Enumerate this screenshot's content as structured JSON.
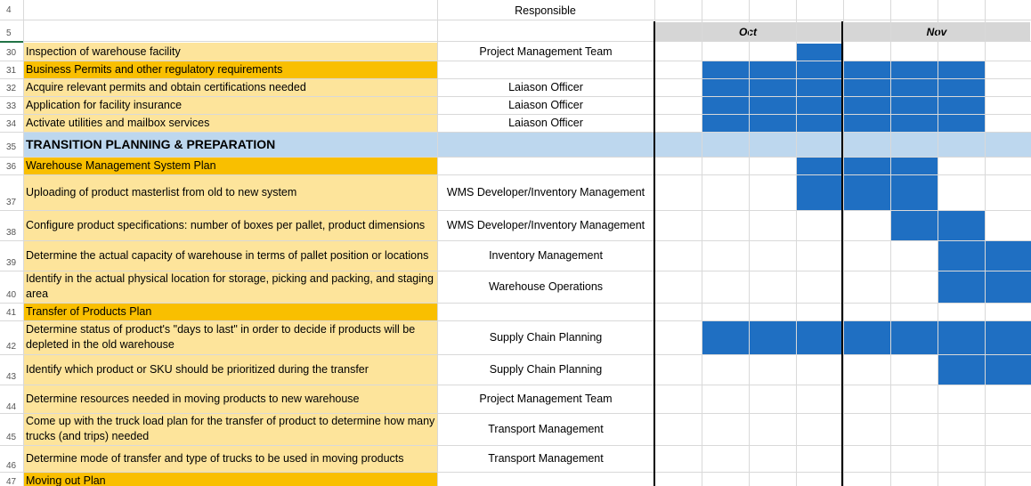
{
  "header": {
    "row4": "4",
    "row5": "5",
    "responsible_label": "Responsible",
    "months": [
      "Oct",
      "Nov"
    ]
  },
  "colors": {
    "task_fill": "#fde49b",
    "section_fill": "#f9bf00",
    "phase_fill": "#bdd7ee",
    "bar_fill": "#1f6fc2"
  },
  "rows": [
    {
      "num": "30",
      "task": "Inspection of warehouse facility",
      "responsible": "Project Management Team",
      "type": "task",
      "bars": [
        [
          3,
          4
        ]
      ]
    },
    {
      "num": "31",
      "task": "Business Permits and other regulatory requirements",
      "responsible": "",
      "type": "section",
      "bars": [
        [
          1,
          7
        ]
      ]
    },
    {
      "num": "32",
      "task": "Acquire relevant permits and obtain certifications needed",
      "responsible": "Laiason Officer",
      "type": "task",
      "bars": [
        [
          1,
          7
        ]
      ]
    },
    {
      "num": "33",
      "task": "Application for facility insurance",
      "responsible": "Laiason Officer",
      "type": "task",
      "bars": [
        [
          1,
          7
        ]
      ]
    },
    {
      "num": "34",
      "task": "Activate utilities and mailbox services",
      "responsible": "Laiason Officer",
      "type": "task",
      "bars": [
        [
          1,
          7
        ]
      ]
    },
    {
      "num": "35",
      "task": "TRANSITION PLANNING & PREPARATION",
      "responsible": "",
      "type": "phase",
      "bars": []
    },
    {
      "num": "36",
      "task": "Warehouse Management System Plan",
      "responsible": "",
      "type": "section",
      "bars": [
        [
          3,
          6
        ]
      ]
    },
    {
      "num": "37",
      "task": "Uploading of product masterlist from old to new system",
      "responsible": "WMS Developer/Inventory Management",
      "type": "task",
      "bars": [
        [
          3,
          6
        ]
      ]
    },
    {
      "num": "38",
      "task": "Configure product specifications: number of boxes per pallet, product dimensions",
      "responsible": "WMS Developer/Inventory Management",
      "type": "task",
      "bars": [
        [
          5,
          7
        ]
      ]
    },
    {
      "num": "39",
      "task": "Determine the actual capacity of warehouse in terms of pallet position or locations",
      "responsible": "Inventory Management",
      "type": "task",
      "bars": [
        [
          6,
          8
        ]
      ]
    },
    {
      "num": "40",
      "task": "Identify in the actual physical location for storage, picking and packing, and staging area",
      "responsible": "Warehouse Operations",
      "type": "task",
      "bars": [
        [
          6,
          8
        ]
      ]
    },
    {
      "num": "41",
      "task": "Transfer of Products Plan",
      "responsible": "",
      "type": "section",
      "bars": []
    },
    {
      "num": "42",
      "task": "Determine status of product's \"days to last\" in order to decide if products will be depleted in the old warehouse",
      "responsible": "Supply Chain Planning",
      "type": "task",
      "bars": [
        [
          1,
          8
        ]
      ]
    },
    {
      "num": "43",
      "task": "Identify which product or SKU should be prioritized during the transfer",
      "responsible": "Supply Chain Planning",
      "type": "task",
      "bars": [
        [
          6,
          8
        ]
      ]
    },
    {
      "num": "44",
      "task": "Determine resources needed in moving products to new warehouse",
      "responsible": "Project Management Team",
      "type": "task",
      "bars": []
    },
    {
      "num": "45",
      "task": "Come up with the truck load plan for the transfer of product to determine how many trucks (and trips) needed",
      "responsible": "Transport Management",
      "type": "task",
      "bars": []
    },
    {
      "num": "46",
      "task": "Determine mode of transfer and type of trucks to be used in moving products",
      "responsible": "Transport Management",
      "type": "task",
      "bars": []
    },
    {
      "num": "47",
      "task": "Moving out Plan",
      "responsible": "",
      "type": "section",
      "bars": []
    }
  ]
}
